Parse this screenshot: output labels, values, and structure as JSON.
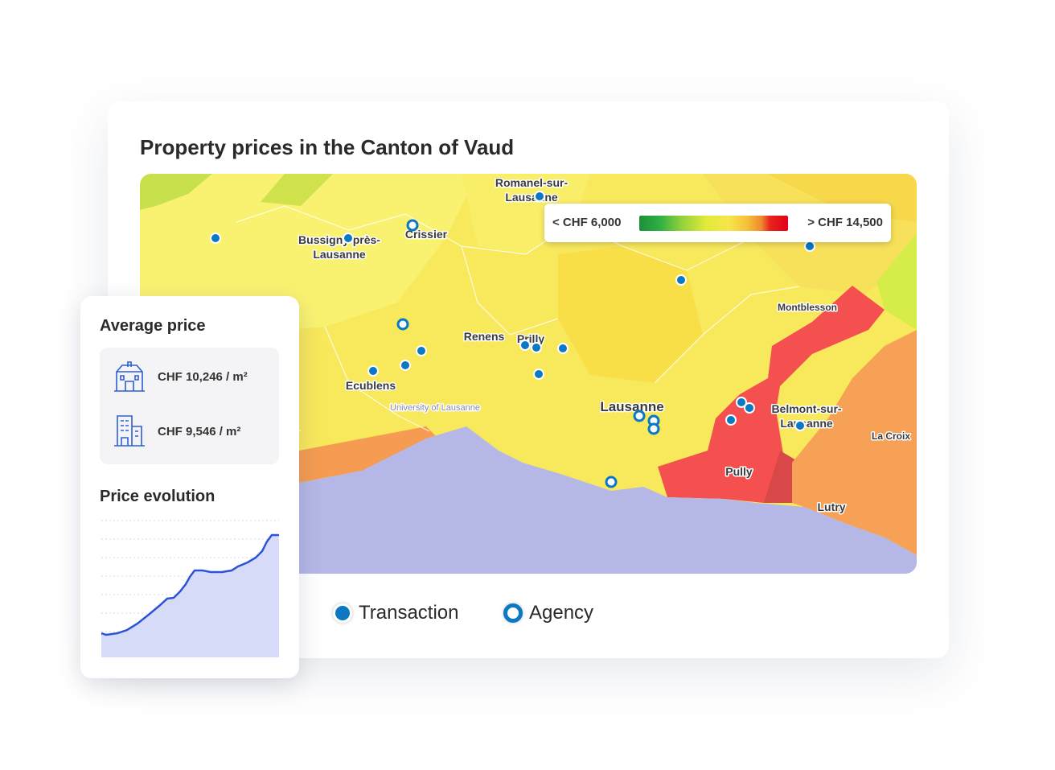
{
  "header": {
    "title": "Property prices in the Canton of Vaud"
  },
  "map": {
    "scale": {
      "min_label": "< CHF 6,000",
      "max_label": "> CHF 14,500"
    },
    "places": [
      [
        "Romanel-sur-",
        "Lausanne"
      ],
      [
        "Crissier"
      ],
      [
        "Bussigny-près-",
        "Lausanne"
      ],
      [
        "Montblesson"
      ],
      [
        "Renens"
      ],
      [
        "Prilly"
      ],
      [
        "Ecublens"
      ],
      [
        "University of Lausanne"
      ],
      [
        "Lausanne"
      ],
      [
        "Belmont-sur-",
        "Lausanne"
      ],
      [
        "La Croix"
      ],
      [
        "Pully"
      ],
      [
        "Lutry"
      ]
    ]
  },
  "legend": [
    "Transaction",
    "Agency"
  ],
  "summary": {
    "title": "Average price",
    "items": [
      "CHF 10,246 / m²",
      "CHF 9,546 / m²"
    ],
    "chart_title": "Price evolution"
  }
}
